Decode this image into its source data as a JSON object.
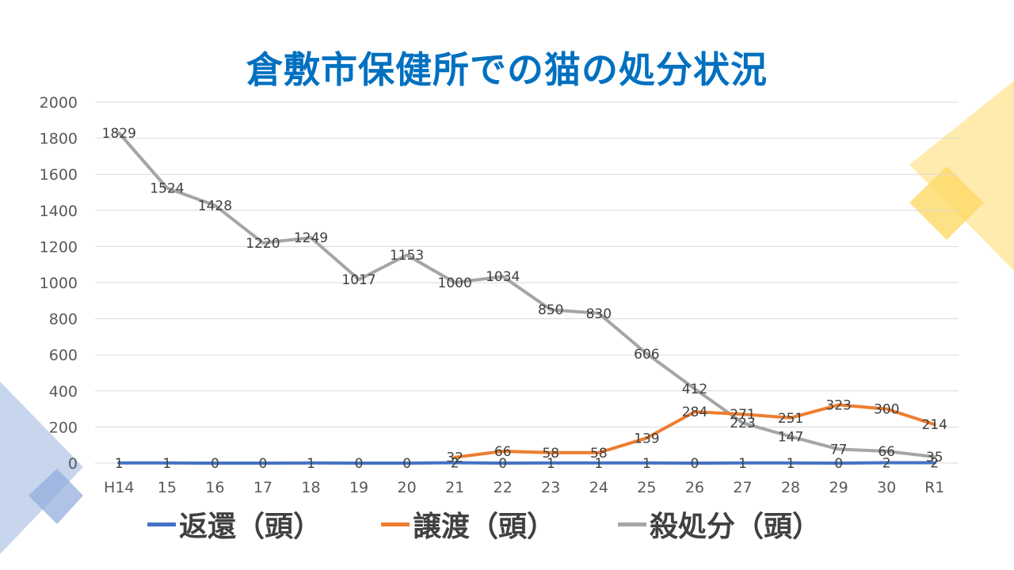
{
  "slide": {
    "title": "倉敷市保健所での猫の処分状況"
  },
  "colors": {
    "title": "#0070c0",
    "grid": "#d9d9d9",
    "deco_blue": "#b4c7e7",
    "deco_yellow": "#ffd966"
  },
  "chart_data": {
    "type": "line",
    "title": "",
    "xlabel": "",
    "ylabel": "",
    "ylim": [
      0,
      2000
    ],
    "yticks": [
      0,
      200,
      400,
      600,
      800,
      1000,
      1200,
      1400,
      1600,
      1800,
      2000
    ],
    "grid": true,
    "legend_position": "bottom",
    "categories": [
      "H14",
      "15",
      "16",
      "17",
      "18",
      "19",
      "20",
      "21",
      "22",
      "23",
      "24",
      "25",
      "26",
      "27",
      "28",
      "29",
      "30",
      "R1"
    ],
    "series": [
      {
        "name": "返還（頭）",
        "color": "#4472c4",
        "values": [
          1,
          1,
          0,
          0,
          1,
          0,
          0,
          2,
          0,
          1,
          1,
          1,
          0,
          1,
          1,
          0,
          2,
          2
        ]
      },
      {
        "name": "譲渡（頭）",
        "color": "#ed7d31",
        "values": [
          null,
          null,
          null,
          null,
          null,
          null,
          null,
          32,
          66,
          58,
          58,
          139,
          284,
          271,
          251,
          323,
          300,
          214
        ]
      },
      {
        "name": "殺処分（頭）",
        "color": "#a5a5a5",
        "values": [
          1829,
          1524,
          1428,
          1220,
          1249,
          1017,
          1153,
          1000,
          1034,
          850,
          830,
          606,
          412,
          223,
          147,
          77,
          66,
          35
        ]
      }
    ]
  }
}
